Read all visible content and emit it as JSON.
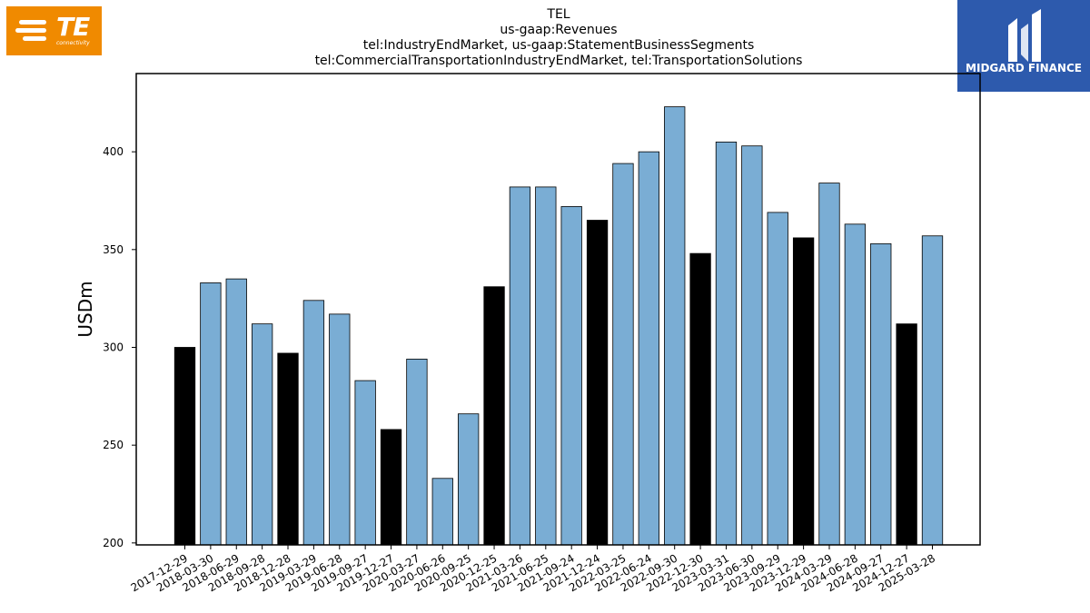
{
  "logos": {
    "left": {
      "text": "TE",
      "subtext": "connectivity",
      "color": "#f08a00"
    },
    "right": {
      "text": "MIDGARD FINANCE",
      "color": "#2d5aad"
    }
  },
  "chart_data": {
    "type": "bar",
    "title_lines": [
      "TEL",
      "us-gaap:Revenues",
      "tel:IndustryEndMarket, us-gaap:StatementBusinessSegments",
      "tel:CommercialTransportationIndustryEndMarket, tel:TransportationSolutions"
    ],
    "xlabel": "",
    "ylabel": "USDm",
    "ylim": [
      199,
      440
    ],
    "yticks": [
      200,
      250,
      300,
      350,
      400
    ],
    "grid": false,
    "colors": {
      "quarter": "#7aadd4",
      "fiscal_q1": "#000000",
      "edge": "#000000"
    },
    "categories": [
      "2017-12-29",
      "2018-03-30",
      "2018-06-29",
      "2018-09-28",
      "2018-12-28",
      "2019-03-29",
      "2019-06-28",
      "2019-09-27",
      "2019-12-27",
      "2020-03-27",
      "2020-06-26",
      "2020-09-25",
      "2020-12-25",
      "2021-03-26",
      "2021-06-25",
      "2021-09-24",
      "2021-12-24",
      "2022-03-25",
      "2022-06-24",
      "2022-09-30",
      "2022-12-30",
      "2023-03-31",
      "2023-06-30",
      "2023-09-29",
      "2023-12-29",
      "2024-03-29",
      "2024-06-28",
      "2024-09-27",
      "2024-12-27",
      "2025-03-28"
    ],
    "values": [
      300,
      333,
      335,
      312,
      297,
      324,
      317,
      283,
      258,
      294,
      233,
      266,
      331,
      382,
      382,
      372,
      365,
      394,
      400,
      423,
      348,
      405,
      403,
      369,
      356,
      384,
      363,
      353,
      312,
      357
    ],
    "highlight": [
      true,
      false,
      false,
      false,
      true,
      false,
      false,
      false,
      true,
      false,
      false,
      false,
      true,
      false,
      false,
      false,
      true,
      false,
      false,
      false,
      true,
      false,
      false,
      false,
      true,
      false,
      false,
      false,
      true,
      false
    ]
  }
}
